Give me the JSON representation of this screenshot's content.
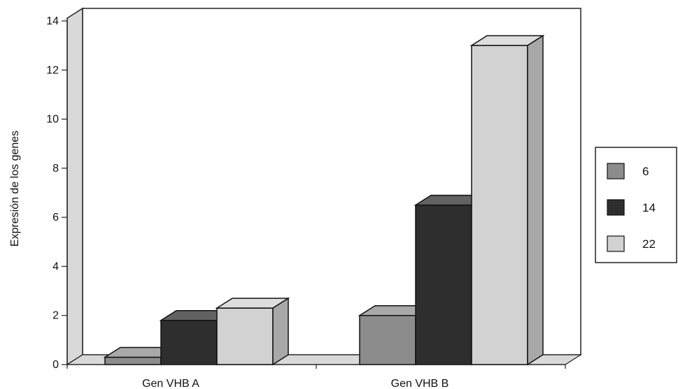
{
  "chart_data": {
    "type": "bar",
    "title": "",
    "xlabel": "",
    "ylabel": "Expresión de los genes",
    "ylim": [
      0,
      14
    ],
    "yticks": [
      "0",
      "2",
      "4",
      "6",
      "8",
      "10",
      "12",
      "14"
    ],
    "categories": [
      "Gen VHB A",
      "Gen VHB B"
    ],
    "series": [
      {
        "name": "6",
        "values": [
          0.3,
          2.0
        ],
        "color": "#8c8c8c"
      },
      {
        "name": "14",
        "values": [
          1.8,
          6.5
        ],
        "color": "#2e2e2e"
      },
      {
        "name": "22",
        "values": [
          2.3,
          13.0
        ],
        "color": "#d2d2d2"
      }
    ],
    "grid": false,
    "legend_position": "right",
    "style": "3d"
  }
}
